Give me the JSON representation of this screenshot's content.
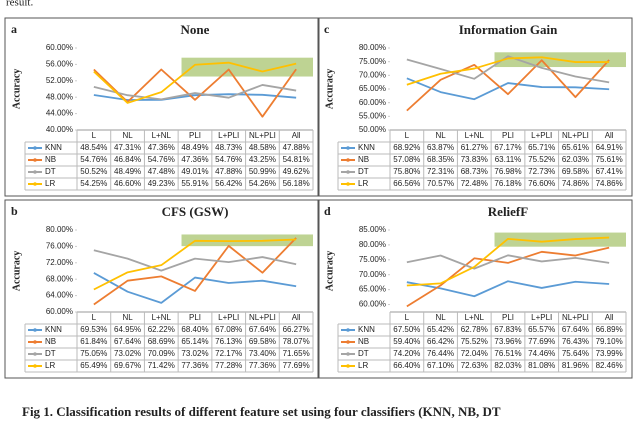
{
  "header_text": "result.",
  "caption": "Fig 1. Classification results of different feature set using four classifiers (KNN, NB, DT",
  "chart_data": [
    {
      "type": "line",
      "panel": "a",
      "title": "None",
      "y_label": "Accuracy",
      "categories": [
        "L",
        "NL",
        "L+NL",
        "PLI",
        "L+PLI",
        "NL+PLI",
        "All"
      ],
      "ylim": [
        40,
        60
      ],
      "yticks": [
        {
          "value": 40,
          "label": "40.00%"
        },
        {
          "value": 44,
          "label": "44.00%"
        },
        {
          "value": 48,
          "label": "48.00%"
        },
        {
          "value": 52,
          "label": "52.00%"
        },
        {
          "value": 56,
          "label": "56.00%"
        },
        {
          "value": 60,
          "label": "60.00%"
        }
      ],
      "grid": false,
      "series": [
        {
          "name": "KNN",
          "color": "#5b9bd5",
          "values": [
            48.54,
            47.31,
            47.36,
            48.49,
            48.73,
            48.58,
            47.88
          ],
          "value_labels": [
            "48.54%",
            "47.31%",
            "47.36%",
            "48.49%",
            "48.73%",
            "48.58%",
            "47.88%"
          ]
        },
        {
          "name": "NB",
          "color": "#ed7d31",
          "values": [
            54.76,
            46.84,
            54.76,
            47.36,
            54.76,
            43.25,
            54.81
          ],
          "value_labels": [
            "54.76%",
            "46.84%",
            "54.76%",
            "47.36%",
            "54.76%",
            "43.25%",
            "54.81%"
          ]
        },
        {
          "name": "DT",
          "color": "#a5a5a5",
          "values": [
            50.52,
            48.49,
            47.48,
            49.01,
            47.88,
            50.99,
            49.62
          ],
          "value_labels": [
            "50.52%",
            "48.49%",
            "47.48%",
            "49.01%",
            "47.88%",
            "50.99%",
            "49.62%"
          ]
        },
        {
          "name": "LR",
          "color": "#ffc000",
          "values": [
            54.25,
            46.6,
            49.23,
            55.91,
            56.42,
            54.26,
            56.18
          ],
          "value_labels": [
            "54.25%",
            "46.60%",
            "49.23%",
            "55.91%",
            "56.42%",
            "54.26%",
            "56.18%"
          ]
        }
      ]
    },
    {
      "type": "line",
      "panel": "c",
      "title": "Information Gain",
      "y_label": "Accuracy",
      "categories": [
        "L",
        "NL",
        "L+NL",
        "PLI",
        "L+PLI",
        "NL+PLI",
        "All"
      ],
      "ylim": [
        50,
        80
      ],
      "yticks": [
        {
          "value": 50,
          "label": "50.00%"
        },
        {
          "value": 55,
          "label": "55.00%"
        },
        {
          "value": 60,
          "label": "60.00%"
        },
        {
          "value": 65,
          "label": "65.00%"
        },
        {
          "value": 70,
          "label": "70.00%"
        },
        {
          "value": 75,
          "label": "75.00%"
        },
        {
          "value": 80,
          "label": "80.00%"
        }
      ],
      "grid": false,
      "series": [
        {
          "name": "KNN",
          "color": "#5b9bd5",
          "values": [
            68.92,
            63.87,
            61.27,
            67.17,
            65.71,
            65.61,
            64.91
          ],
          "value_labels": [
            "68.92%",
            "63.87%",
            "61.27%",
            "67.17%",
            "65.71%",
            "65.61%",
            "64.91%"
          ]
        },
        {
          "name": "NB",
          "color": "#ed7d31",
          "values": [
            57.08,
            68.35,
            73.83,
            63.11,
            75.52,
            62.03,
            75.61
          ],
          "value_labels": [
            "57.08%",
            "68.35%",
            "73.83%",
            "63.11%",
            "75.52%",
            "62.03%",
            "75.61%"
          ]
        },
        {
          "name": "DT",
          "color": "#a5a5a5",
          "values": [
            75.8,
            72.31,
            68.73,
            76.98,
            72.73,
            69.58,
            67.41
          ],
          "value_labels": [
            "75.80%",
            "72.31%",
            "68.73%",
            "76.98%",
            "72.73%",
            "69.58%",
            "67.41%"
          ]
        },
        {
          "name": "LR",
          "color": "#ffc000",
          "values": [
            66.56,
            70.57,
            72.48,
            76.18,
            76.6,
            74.86,
            74.86
          ],
          "value_labels": [
            "66.56%",
            "70.57%",
            "72.48%",
            "76.18%",
            "76.60%",
            "74.86%",
            "74.86%"
          ]
        }
      ]
    },
    {
      "type": "line",
      "panel": "b",
      "title": "CFS (GSW)",
      "y_label": "Accuracy",
      "categories": [
        "L",
        "NL",
        "L+NL",
        "PLI",
        "L+PLI",
        "NL+PLI",
        "All"
      ],
      "ylim": [
        60,
        80
      ],
      "yticks": [
        {
          "value": 60,
          "label": "60.00%"
        },
        {
          "value": 64,
          "label": "64.00%"
        },
        {
          "value": 68,
          "label": "68.00%"
        },
        {
          "value": 72,
          "label": "72.00%"
        },
        {
          "value": 76,
          "label": "76.00%"
        },
        {
          "value": 80,
          "label": "80.00%"
        }
      ],
      "grid": false,
      "series": [
        {
          "name": "KNN",
          "color": "#5b9bd5",
          "values": [
            69.53,
            64.95,
            62.22,
            68.4,
            67.08,
            67.64,
            66.27
          ],
          "value_labels": [
            "69.53%",
            "64.95%",
            "62.22%",
            "68.40%",
            "67.08%",
            "67.64%",
            "66.27%"
          ]
        },
        {
          "name": "NB",
          "color": "#ed7d31",
          "values": [
            61.84,
            67.64,
            68.69,
            65.14,
            76.13,
            69.58,
            78.07
          ],
          "value_labels": [
            "61.84%",
            "67.64%",
            "68.69%",
            "65.14%",
            "76.13%",
            "69.58%",
            "78.07%"
          ]
        },
        {
          "name": "DT",
          "color": "#a5a5a5",
          "values": [
            75.05,
            73.02,
            70.09,
            73.02,
            72.17,
            73.4,
            71.65
          ],
          "value_labels": [
            "75.05%",
            "73.02%",
            "70.09%",
            "73.02%",
            "72.17%",
            "73.40%",
            "71.65%"
          ]
        },
        {
          "name": "LR",
          "color": "#ffc000",
          "values": [
            65.49,
            69.67,
            71.42,
            77.36,
            77.28,
            77.36,
            77.69
          ],
          "value_labels": [
            "65.49%",
            "69.67%",
            "71.42%",
            "77.36%",
            "77.28%",
            "77.36%",
            "77.69%"
          ]
        }
      ]
    },
    {
      "type": "line",
      "panel": "d",
      "title": "ReliefF",
      "y_label": "Accuracy",
      "categories": [
        "L",
        "NL",
        "L+NL",
        "PLI",
        "L+PLI",
        "NL+PLI",
        "All"
      ],
      "ylim": [
        57.5,
        85
      ],
      "yticks": [
        {
          "value": 60,
          "label": "60.00%"
        },
        {
          "value": 65,
          "label": "65.00%"
        },
        {
          "value": 70,
          "label": "70.00%"
        },
        {
          "value": 75,
          "label": "75.00%"
        },
        {
          "value": 80,
          "label": "80.00%"
        },
        {
          "value": 85,
          "label": "85.00%"
        }
      ],
      "grid": false,
      "series": [
        {
          "name": "KNN",
          "color": "#5b9bd5",
          "values": [
            67.5,
            65.42,
            62.78,
            67.83,
            65.57,
            67.64,
            66.89
          ],
          "value_labels": [
            "67.50%",
            "65.42%",
            "62.78%",
            "67.83%",
            "65.57%",
            "67.64%",
            "66.89%"
          ]
        },
        {
          "name": "NB",
          "color": "#ed7d31",
          "values": [
            59.4,
            66.42,
            75.52,
            73.96,
            77.69,
            76.43,
            79.1
          ],
          "value_labels": [
            "59.40%",
            "66.42%",
            "75.52%",
            "73.96%",
            "77.69%",
            "76.43%",
            "79.10%"
          ]
        },
        {
          "name": "DT",
          "color": "#a5a5a5",
          "values": [
            74.2,
            76.44,
            72.04,
            76.51,
            74.46,
            75.64,
            73.99
          ],
          "value_labels": [
            "74.20%",
            "76.44%",
            "72.04%",
            "76.51%",
            "74.46%",
            "75.64%",
            "73.99%"
          ]
        },
        {
          "name": "LR",
          "color": "#ffc000",
          "values": [
            66.4,
            67.1,
            72.63,
            82.03,
            81.08,
            81.96,
            82.46
          ],
          "value_labels": [
            "66.40%",
            "67.10%",
            "72.63%",
            "82.03%",
            "81.08%",
            "81.96%",
            "82.46%"
          ]
        }
      ]
    }
  ]
}
